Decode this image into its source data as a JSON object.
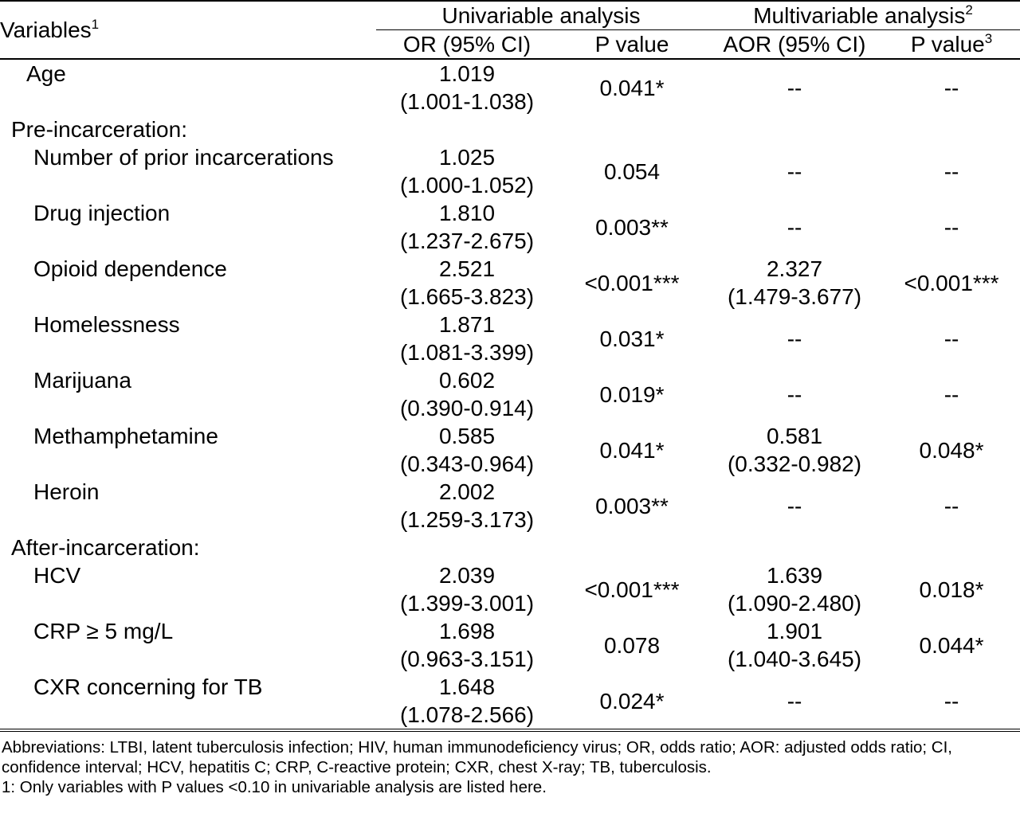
{
  "header": {
    "variables": "Variables",
    "variables_sup": "1",
    "univariable": "Univariable analysis",
    "multivariable": "Multivariable analysis",
    "multivariable_sup": "2",
    "or_ci": "OR (95% CI)",
    "p_value": "P value",
    "aor_ci": "AOR (95% CI)",
    "p_value_adj": "P value",
    "p_value_adj_sup": "3"
  },
  "rows": {
    "age": {
      "label": "Age",
      "or": "1.019",
      "or_ci": "(1.001-1.038)",
      "p": "0.041*",
      "aor": "--",
      "p_adj": "--"
    },
    "pre_section": "Pre-incarceration:",
    "prior_incarcerations": {
      "label": "Number of prior incarcerations",
      "or": "1.025",
      "or_ci": "(1.000-1.052)",
      "p": "0.054",
      "aor": "--",
      "p_adj": "--"
    },
    "drug_injection": {
      "label": "Drug injection",
      "or": "1.810",
      "or_ci": "(1.237-2.675)",
      "p": "0.003**",
      "aor": "--",
      "p_adj": "--"
    },
    "opioid": {
      "label": "Opioid dependence",
      "or": "2.521",
      "or_ci": "(1.665-3.823)",
      "p": "<0.001***",
      "aor": "2.327",
      "aor_ci": "(1.479-3.677)",
      "p_adj": "<0.001***"
    },
    "homelessness": {
      "label": "Homelessness",
      "or": "1.871",
      "or_ci": "(1.081-3.399)",
      "p": "0.031*",
      "aor": "--",
      "p_adj": "--"
    },
    "marijuana": {
      "label": "Marijuana",
      "or": "0.602",
      "or_ci": "(0.390-0.914)",
      "p": "0.019*",
      "aor": "--",
      "p_adj": "--"
    },
    "methamphetamine": {
      "label": "Methamphetamine",
      "or": "0.585",
      "or_ci": "(0.343-0.964)",
      "p": "0.041*",
      "aor": "0.581",
      "aor_ci": "(0.332-0.982)",
      "p_adj": "0.048*"
    },
    "heroin": {
      "label": "Heroin",
      "or": "2.002",
      "or_ci": "(1.259-3.173)",
      "p": "0.003**",
      "aor": "--",
      "p_adj": "--"
    },
    "after_section": "After-incarceration:",
    "hcv": {
      "label": "HCV",
      "or": "2.039",
      "or_ci": "(1.399-3.001)",
      "p": "<0.001***",
      "aor": "1.639",
      "aor_ci": "(1.090-2.480)",
      "p_adj": "0.018*"
    },
    "crp": {
      "label": "CRP ≥ 5 mg/L",
      "or": "1.698",
      "or_ci": "(0.963-3.151)",
      "p": "0.078",
      "aor": "1.901",
      "aor_ci": "(1.040-3.645)",
      "p_adj": "0.044*"
    },
    "cxr": {
      "label": "CXR concerning for TB",
      "or": "1.648",
      "or_ci": "(1.078-2.566)",
      "p": "0.024*",
      "aor": "--",
      "p_adj": "--"
    }
  },
  "footnotes": {
    "abbreviations": "Abbreviations: LTBI, latent tuberculosis infection; HIV, human immunodeficiency virus; OR, odds ratio;  AOR: adjusted odds ratio; CI, confidence interval; HCV, hepatitis C; CRP, C-reactive protein; CXR, chest X-ray; TB, tuberculosis.",
    "note1": "1: Only variables with P values <0.10 in univariable analysis are listed here."
  }
}
